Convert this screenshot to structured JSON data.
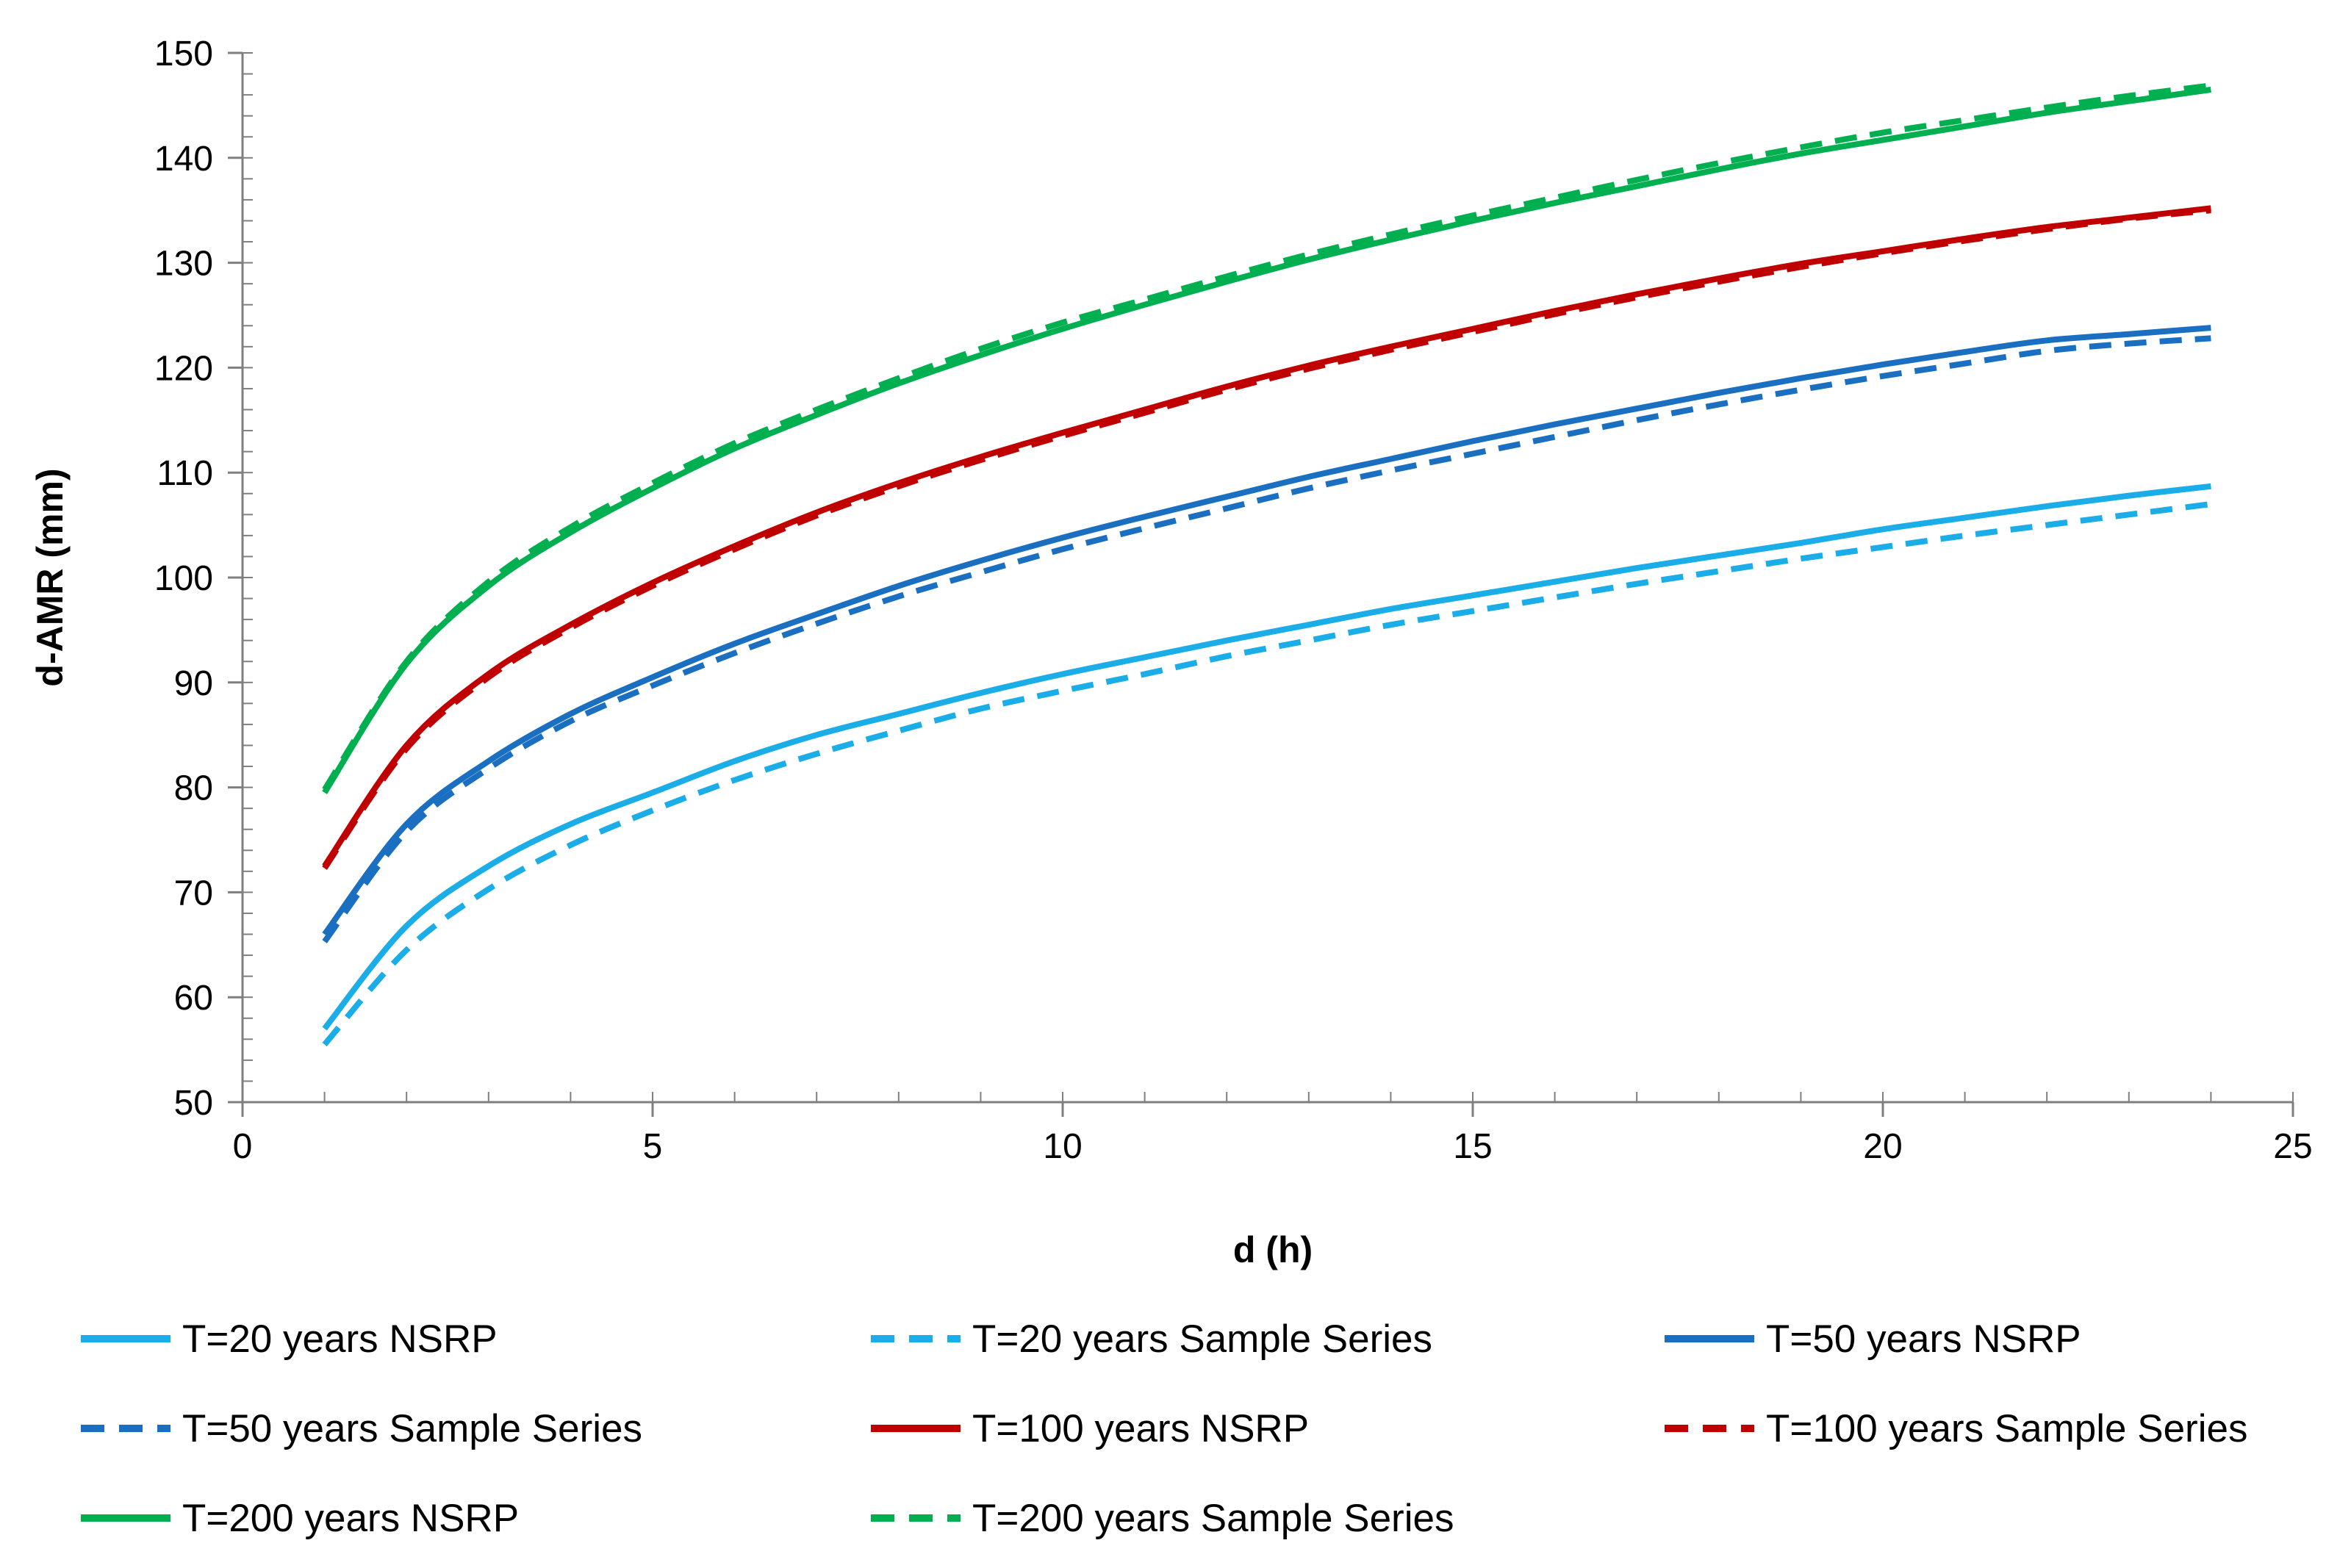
{
  "chart_data": {
    "type": "line",
    "title": "",
    "xlabel": "d (h)",
    "ylabel": "d-AMR (mm)",
    "xlim": [
      0,
      25
    ],
    "ylim": [
      50,
      150
    ],
    "xticks": [
      0,
      5,
      10,
      15,
      20,
      25
    ],
    "yticks": [
      50,
      60,
      70,
      80,
      90,
      100,
      110,
      120,
      130,
      140,
      150
    ],
    "grid": false,
    "legend_position": "bottom",
    "x": [
      1,
      2,
      3,
      4,
      5,
      6,
      7,
      8,
      9,
      10,
      11,
      12,
      13,
      14,
      15,
      16,
      17,
      18,
      19,
      20,
      21,
      22,
      23,
      24
    ],
    "series": [
      {
        "name": "T=20 years NSRP",
        "color": "#1AADE8",
        "dash": "solid",
        "values": [
          57.0,
          66.8,
          72.5,
          76.5,
          79.5,
          82.5,
          85.0,
          87.0,
          89.0,
          90.8,
          92.4,
          94.0,
          95.5,
          97.0,
          98.3,
          99.6,
          100.9,
          102.1,
          103.3,
          104.6,
          105.7,
          106.8,
          107.8,
          108.7
        ]
      },
      {
        "name": "T=20 years Sample Series",
        "color": "#1AADE8",
        "dash": "dashed",
        "values": [
          55.5,
          64.5,
          70.3,
          74.5,
          77.8,
          80.7,
          83.2,
          85.4,
          87.5,
          89.2,
          90.8,
          92.5,
          94.0,
          95.5,
          96.8,
          98.1,
          99.4,
          100.6,
          101.8,
          102.9,
          104.0,
          105.0,
          106.0,
          107.0
        ]
      },
      {
        "name": "T=50 years NSRP",
        "color": "#1A6FC1",
        "dash": "solid",
        "values": [
          66.0,
          76.5,
          82.5,
          87.0,
          90.5,
          93.7,
          96.5,
          99.2,
          101.6,
          103.8,
          105.8,
          107.7,
          109.6,
          111.3,
          113.0,
          114.6,
          116.1,
          117.6,
          119.0,
          120.3,
          121.5,
          122.6,
          123.2,
          123.8
        ]
      },
      {
        "name": "T=50 years Sample Series",
        "color": "#1A6FC1",
        "dash": "dashed",
        "values": [
          65.3,
          75.8,
          81.8,
          86.3,
          89.7,
          92.8,
          95.6,
          98.2,
          100.5,
          102.7,
          104.7,
          106.6,
          108.5,
          110.2,
          111.8,
          113.4,
          115.0,
          116.5,
          117.9,
          119.2,
          120.4,
          121.6,
          122.3,
          122.8
        ]
      },
      {
        "name": "T=100 years NSRP",
        "color": "#C00000",
        "dash": "solid",
        "values": [
          72.5,
          84.0,
          90.8,
          95.5,
          99.5,
          103.0,
          106.2,
          109.0,
          111.5,
          113.8,
          116.0,
          118.2,
          120.2,
          122.0,
          123.7,
          125.4,
          127.0,
          128.5,
          129.9,
          131.1,
          132.3,
          133.4,
          134.3,
          135.2
        ]
      },
      {
        "name": "T=100 years Sample Series",
        "color": "#C00000",
        "dash": "dashed",
        "values": [
          72.3,
          83.7,
          90.5,
          95.2,
          99.2,
          102.7,
          105.9,
          108.7,
          111.2,
          113.5,
          115.7,
          117.9,
          119.9,
          121.7,
          123.4,
          125.1,
          126.7,
          128.2,
          129.6,
          130.9,
          132.1,
          133.2,
          134.2,
          135.0
        ]
      },
      {
        "name": "T=200 years NSRP",
        "color": "#00B050",
        "dash": "solid",
        "values": [
          79.5,
          91.8,
          99.2,
          104.3,
          108.5,
          112.3,
          115.5,
          118.5,
          121.2,
          123.7,
          126.0,
          128.2,
          130.3,
          132.2,
          134.0,
          135.7,
          137.3,
          138.9,
          140.4,
          141.7,
          143.0,
          144.3,
          145.4,
          146.5
        ]
      },
      {
        "name": "T=200 years Sample Series",
        "color": "#00B050",
        "dash": "dashed",
        "values": [
          79.8,
          92.0,
          99.6,
          104.8,
          109.0,
          112.8,
          116.0,
          119.0,
          121.8,
          124.3,
          126.5,
          128.7,
          130.8,
          132.7,
          134.5,
          136.2,
          137.9,
          139.5,
          141.0,
          142.4,
          143.6,
          144.8,
          145.9,
          146.9
        ]
      }
    ]
  }
}
